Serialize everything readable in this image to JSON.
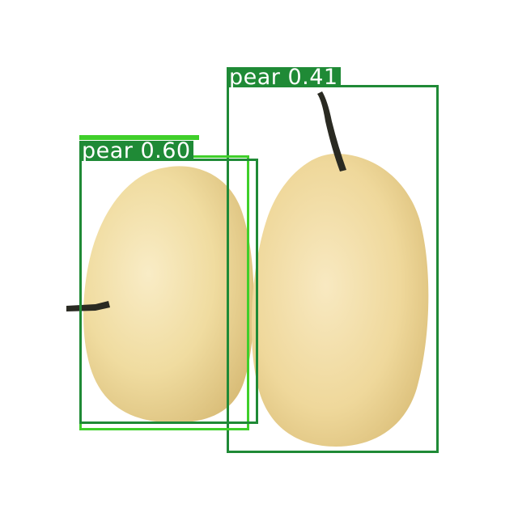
{
  "image": {
    "background": "#ffffff",
    "fruit_color": "#f0dc9e",
    "fruit_highlight": "#f8eac2",
    "fruit_shadow": "#dcc07a",
    "stem_color": "#2a2a22"
  },
  "detections": [
    {
      "label": "pear 0.41",
      "class": "pear",
      "confidence": 0.41,
      "color": "#1f8a36"
    },
    {
      "label": "pear 0.60",
      "class": "pear",
      "confidence": 0.6,
      "color": "#1f8a36"
    },
    {
      "label": "",
      "class": "pear",
      "color": "#3fcf2a"
    }
  ]
}
